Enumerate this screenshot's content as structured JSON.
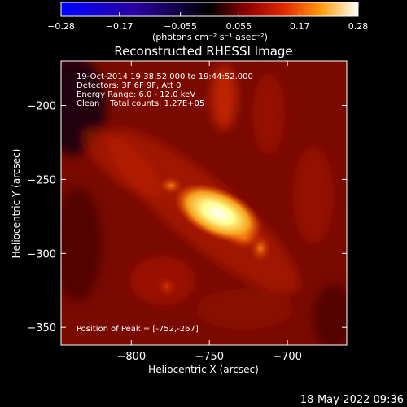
{
  "chart_data": {
    "type": "heatmap",
    "title": "Reconstructed RHESSI Image",
    "xlabel": "Heliocentric X (arcsec)",
    "ylabel": "Heliocentric Y (arcsec)",
    "xlim": [
      -845,
      -662
    ],
    "ylim": [
      -362,
      -170
    ],
    "x_ticks": [
      -800,
      -750,
      -700
    ],
    "x_tick_labels": [
      "−800",
      "−750",
      "−700"
    ],
    "y_ticks": [
      -200,
      -250,
      -300,
      -350
    ],
    "y_tick_labels": [
      "−200",
      "−250",
      "−300",
      "−350"
    ],
    "colorbar": {
      "range": [
        -0.28,
        0.28
      ],
      "ticks": [
        -0.28,
        -0.17,
        -0.055,
        0.055,
        0.17,
        0.28
      ],
      "tick_labels": [
        "−0.28",
        "−0.17",
        "−0.055",
        "0.055",
        "0.17",
        "0.28"
      ],
      "units_label": "(photons cm⁻² s⁻¹ asec⁻²)"
    },
    "annotations": [
      "19-Oct-2014 19:38:52.000 to 19:44:52.000",
      "Detectors: 3F 6F 9F, Att 0",
      "Energy Range: 6.0 - 12.0 keV",
      "Clean    Total counts: 1.27E+05"
    ],
    "peak_label": "Position of Peak = [-752,-267]",
    "peak": [
      -752,
      -267
    ]
  },
  "footer": {
    "date": "18-May-2022 09:36"
  }
}
